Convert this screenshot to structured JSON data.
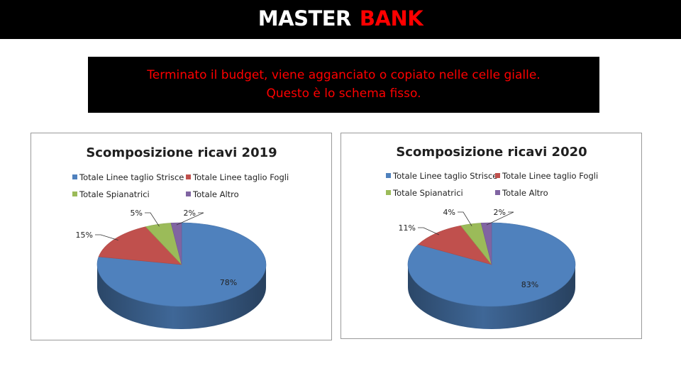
{
  "header": {
    "brand_white": "MASTER",
    "brand_red": "BANK"
  },
  "note": {
    "line1": "Terminato il budget, viene agganciato o copiato nelle celle gialle.",
    "line2": "Questo è lo schema fisso."
  },
  "colors": {
    "bar_bg": "#000000",
    "brand_red": "#ff0000",
    "series": [
      "#4f81bd",
      "#c0504d",
      "#9bbb59",
      "#8064a2"
    ]
  },
  "chart_data": [
    {
      "type": "pie",
      "title": "Scomposizione ricavi 2019",
      "categories": [
        "Totale Linee taglio Strisce",
        "Totale Linee taglio Fogli",
        "Totale Spianatrici",
        "Totale Altro"
      ],
      "values": [
        78,
        15,
        5,
        2
      ],
      "labels": [
        "78%",
        "15%",
        "5%",
        "2%"
      ],
      "legend": "top",
      "three_d": true
    },
    {
      "type": "pie",
      "title": "Scomposizione ricavi 2020",
      "categories": [
        "Totale Linee taglio Strisce",
        "Totale Linee taglio Fogli",
        "Totale Spianatrici",
        "Totale Altro"
      ],
      "values": [
        83,
        11,
        4,
        2
      ],
      "labels": [
        "83%",
        "11%",
        "4%",
        "2%"
      ],
      "legend": "top",
      "three_d": true
    }
  ]
}
